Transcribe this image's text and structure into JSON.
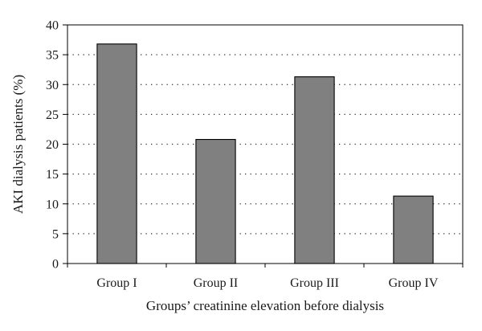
{
  "chart_data": {
    "type": "bar",
    "categories": [
      "Group I",
      "Group II",
      "Group III",
      "Group IV"
    ],
    "values": [
      36.8,
      20.8,
      31.3,
      11.3
    ],
    "xlabel": "Groups’ creatinine elevation before dialysis",
    "ylabel": "AKI dialysis patients (%)",
    "ylim": [
      0,
      40
    ],
    "yticks": [
      0,
      5,
      10,
      15,
      20,
      25,
      30,
      35,
      40
    ],
    "grid": "horizontal dotted",
    "legend": "none",
    "bar_color": "#808080",
    "bar_edge_color": "#000000"
  }
}
